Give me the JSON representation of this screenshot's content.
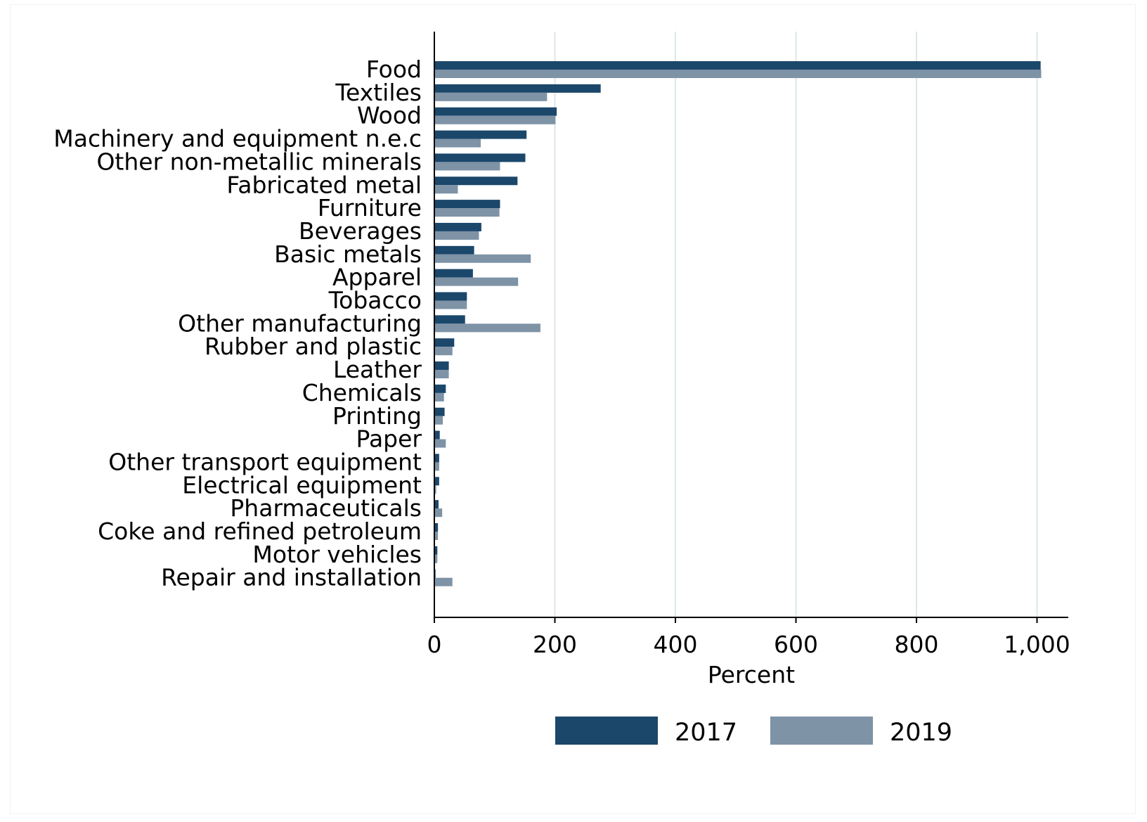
{
  "colors": {
    "s2017": "#1b476b",
    "s2019": "#7e93a6",
    "grid": "#dde7e7",
    "axis": "#000000"
  },
  "chart_data": {
    "type": "bar",
    "orientation": "horizontal",
    "title": "",
    "xlabel": "Percent",
    "ylabel": "",
    "xlim": [
      0,
      1050
    ],
    "xticks": [
      0,
      200,
      400,
      600,
      800,
      1000
    ],
    "xtick_labels": [
      "0",
      "200",
      "400",
      "600",
      "800",
      "1,000"
    ],
    "grid": "vertical",
    "legend_position": "bottom",
    "categories": [
      "Food",
      "Textiles",
      "Wood",
      "Machinery and equipment n.e.c",
      "Other non-metallic minerals",
      "Fabricated metal",
      "Furniture",
      "Beverages",
      "Basic metals",
      "Apparel",
      "Tobacco",
      "Other manufacturing",
      "Rubber and plastic",
      "Leather",
      "Chemicals",
      "Printing",
      "Paper",
      "Other transport equipment",
      "Electrical equipment",
      "Pharmaceuticals",
      "Coke and refined petroleum",
      "Motor vehicles",
      "Repair and installation"
    ],
    "series": [
      {
        "name": "2017",
        "values": [
          1006,
          276,
          203,
          153,
          151,
          138,
          109,
          78,
          66,
          64,
          54,
          51,
          33,
          24,
          19,
          17,
          9,
          8,
          8,
          7,
          6,
          5,
          2
        ]
      },
      {
        "name": "2019",
        "values": [
          1007,
          187,
          201,
          77,
          109,
          39,
          108,
          74,
          160,
          139,
          54,
          176,
          30,
          24,
          16,
          14,
          19,
          8,
          3,
          13,
          6,
          5,
          30
        ]
      }
    ]
  }
}
